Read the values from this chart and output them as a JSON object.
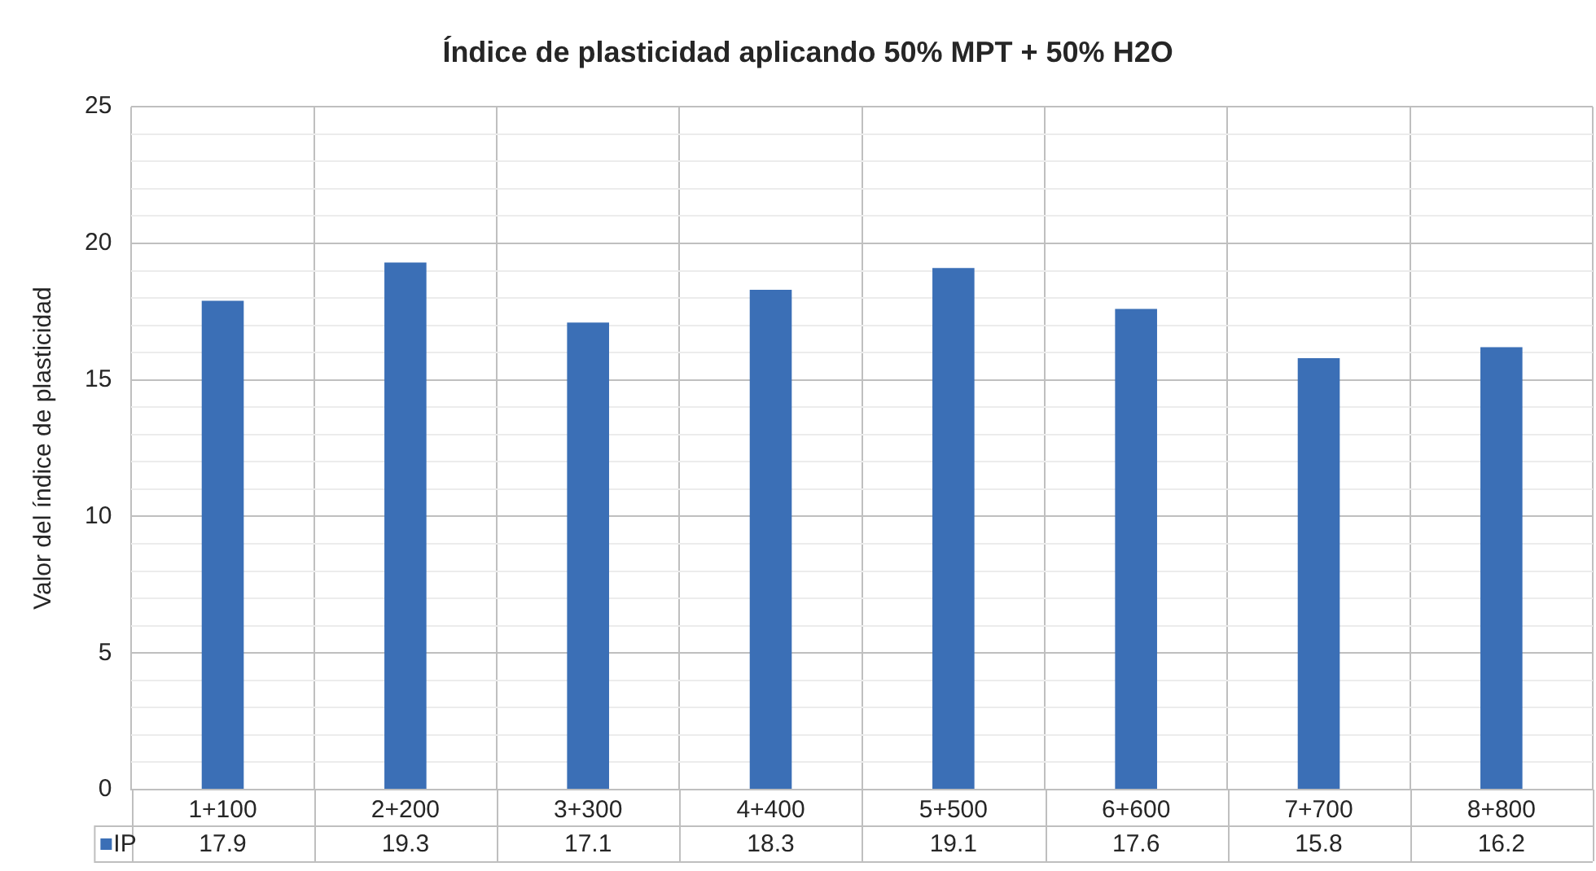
{
  "chart_data": {
    "type": "bar",
    "title": "Índice de plasticidad aplicando 50% MPT + 50% H2O",
    "ylabel": "Valor del índice de plasticidad",
    "categories": [
      "1+100",
      "2+200",
      "3+300",
      "4+400",
      "5+500",
      "6+600",
      "7+700",
      "8+800"
    ],
    "series": [
      {
        "name": "IP",
        "color": "#3b6fb6",
        "values": [
          17.9,
          19.3,
          17.1,
          18.3,
          19.1,
          17.6,
          15.8,
          16.2
        ]
      }
    ],
    "ylim": [
      0,
      25
    ],
    "yticks": [
      0,
      {
        "value": 1,
        "label": null
      },
      {
        "value": 2,
        "label": null
      },
      {
        "value": 3,
        "label": null
      },
      {
        "value": 4,
        "label": null
      },
      5,
      {
        "value": 6,
        "label": null
      },
      {
        "value": 7,
        "label": null
      },
      {
        "value": 8,
        "label": null
      },
      {
        "value": 9,
        "label": null
      },
      10,
      {
        "value": 11,
        "label": null
      },
      {
        "value": 12,
        "label": null
      },
      {
        "value": 13,
        "label": null
      },
      {
        "value": 14,
        "label": null
      },
      15,
      {
        "value": 16,
        "label": null
      },
      {
        "value": 17,
        "label": null
      },
      {
        "value": 18,
        "label": null
      },
      {
        "value": 19,
        "label": null
      },
      20,
      {
        "value": 21,
        "label": null
      },
      {
        "value": 22,
        "label": null
      },
      {
        "value": 23,
        "label": null
      },
      {
        "value": 24,
        "label": null
      },
      25
    ],
    "grid": true,
    "legend": "bottom left",
    "data_labels": true
  }
}
